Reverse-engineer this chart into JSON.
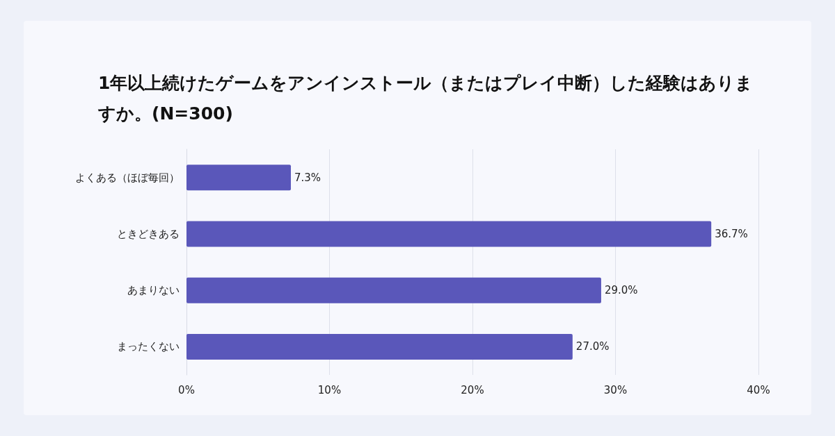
{
  "chart_data": {
    "type": "bar",
    "orientation": "horizontal",
    "title": "1年以上続けたゲームをアンインストール（またはプレイ中断）した経験はありますか。(N=300)",
    "categories": [
      "よくある（ほぼ毎回）",
      "ときどきある",
      "あまりない",
      "まったくない"
    ],
    "values": [
      7.3,
      36.7,
      29.0,
      27.0
    ],
    "value_labels": [
      "7.3%",
      "36.7%",
      "29.0%",
      "27.0%"
    ],
    "color": "#5a57ba",
    "xlim": [
      0,
      40
    ],
    "xticks": [
      {
        "value": 0,
        "label": "0%"
      },
      {
        "value": 10,
        "label": "10%"
      },
      {
        "value": 20,
        "label": "20%"
      },
      {
        "value": 30,
        "label": "30%"
      },
      {
        "value": 40,
        "label": "40%"
      }
    ],
    "grid": "x"
  }
}
